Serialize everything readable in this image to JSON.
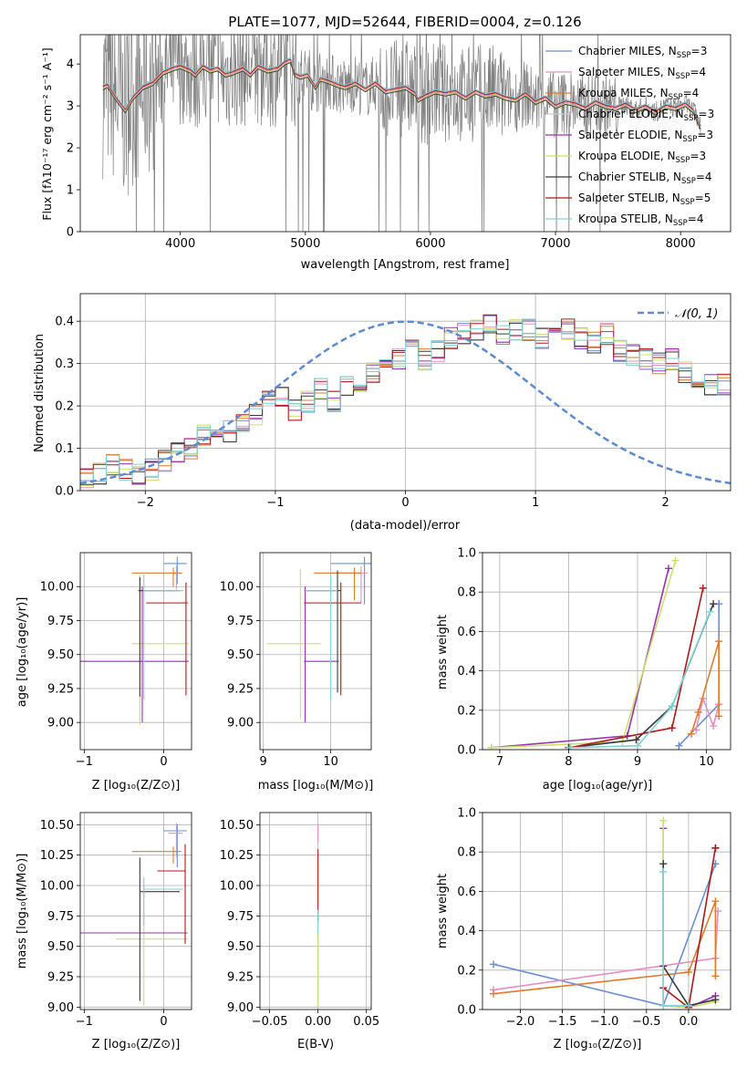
{
  "colors": {
    "chabrier_miles": "#6a8ed6",
    "salpeter_miles": "#e58fc4",
    "kroupa_miles": "#e07b28",
    "chabrier_elodie": "#ffffff",
    "salpeter_elodie": "#9b30b0",
    "kroupa_elodie": "#cce06a",
    "chabrier_stelib": "#3a3a3a",
    "salpeter_stelib": "#b01818",
    "kroupa_stelib": "#7dd3d6",
    "data": "#808080",
    "normal": "#5b8bd4"
  },
  "chart_data": [
    {
      "id": "spectrum",
      "type": "line",
      "title": "PLATE=1077, MJD=52644, FIBERID=0004, z=0.126",
      "xlabel": "wavelength [Angstrom, rest frame]",
      "ylabel": "Flux [fλ10⁻¹⁷ erg cm⁻² s⁻¹ A⁻¹]",
      "xlim": [
        3200,
        8400
      ],
      "ylim": [
        0,
        4.7
      ],
      "xticks": [
        "4000",
        "5000",
        "6000",
        "7000",
        "8000"
      ],
      "yticks": [
        "0",
        "1",
        "2",
        "3",
        "4"
      ],
      "legend_position": "right",
      "legend": [
        {
          "main": "Chabrier MILES, N",
          "sub": "SSP",
          "tail": "=3",
          "color": "chabrier_miles"
        },
        {
          "main": "Salpeter MILES, N",
          "sub": "SSP",
          "tail": "=4",
          "color": "salpeter_miles"
        },
        {
          "main": "Kroupa MILES, N",
          "sub": "SSP",
          "tail": "=4",
          "color": "kroupa_miles"
        },
        {
          "main": "Chabrier ELODIE, N",
          "sub": "SSP",
          "tail": "=3",
          "color": "chabrier_elodie"
        },
        {
          "main": "Salpeter ELODIE, N",
          "sub": "SSP",
          "tail": "=3",
          "color": "salpeter_elodie"
        },
        {
          "main": "Kroupa ELODIE, N",
          "sub": "SSP",
          "tail": "=3",
          "color": "kroupa_elodie"
        },
        {
          "main": "Chabrier STELIB, N",
          "sub": "SSP",
          "tail": "=4",
          "color": "chabrier_stelib"
        },
        {
          "main": "Salpeter STELIB, N",
          "sub": "SSP",
          "tail": "=5",
          "color": "salpeter_stelib"
        },
        {
          "main": "Kroupa STELIB, N",
          "sub": "SSP",
          "tail": "=4",
          "color": "kroupa_stelib"
        }
      ],
      "model_x": [
        3380,
        3420,
        3460,
        3520,
        3560,
        3620,
        3700,
        3780,
        3860,
        3940,
        4000,
        4080,
        4120,
        4180,
        4240,
        4300,
        4360,
        4420,
        4500,
        4560,
        4620,
        4700,
        4780,
        4840,
        4880,
        4920,
        4960,
        5020,
        5080,
        5120,
        5180,
        5260,
        5320,
        5400,
        5480,
        5560,
        5640,
        5720,
        5800,
        5880,
        5900,
        5960,
        6040,
        6120,
        6200,
        6280,
        6360,
        6440,
        6520,
        6600,
        6680,
        6760,
        6840,
        6920,
        7000,
        7080,
        7160,
        7240,
        7320,
        7400,
        7480,
        7560,
        7640,
        7720,
        7800,
        7880,
        7960,
        8040,
        8100,
        8160
      ],
      "model_y": [
        3.45,
        3.5,
        3.3,
        3.05,
        2.9,
        3.2,
        3.45,
        3.55,
        3.8,
        3.9,
        3.95,
        3.85,
        3.75,
        3.95,
        3.85,
        3.9,
        3.75,
        3.8,
        3.9,
        3.75,
        3.95,
        3.85,
        3.9,
        4.05,
        4.1,
        3.75,
        3.7,
        3.75,
        3.45,
        3.65,
        3.6,
        3.5,
        3.45,
        3.55,
        3.4,
        3.55,
        3.35,
        3.4,
        3.45,
        3.3,
        3.15,
        3.25,
        3.35,
        3.3,
        3.35,
        3.2,
        3.35,
        3.25,
        3.3,
        3.2,
        3.15,
        3.3,
        3.1,
        3.2,
        3.0,
        3.1,
        3.05,
        2.95,
        3.1,
        3.0,
        2.95,
        3.05,
        2.9,
        3.0,
        2.85,
        3.0,
        2.95,
        3.05,
        2.9,
        2.5
      ]
    },
    {
      "id": "residuals",
      "type": "line",
      "xlabel": "(data-model)/error",
      "ylabel": "Normed distribution",
      "xlim": [
        -2.5,
        2.5
      ],
      "ylim": [
        0,
        0.465
      ],
      "xticks": [
        "−2",
        "−1",
        "0",
        "1",
        "2"
      ],
      "yticks": [
        "0.0",
        "0.1",
        "0.2",
        "0.3",
        "0.4"
      ],
      "legend_position": "top-right",
      "legend_label": "𝒩(0, 1)",
      "bin_width": 0.1,
      "bin_start": -2.5,
      "hist": [
        0.03,
        0.04,
        0.06,
        0.05,
        0.04,
        0.05,
        0.07,
        0.09,
        0.1,
        0.13,
        0.15,
        0.14,
        0.16,
        0.18,
        0.21,
        0.22,
        0.19,
        0.21,
        0.24,
        0.21,
        0.25,
        0.26,
        0.28,
        0.3,
        0.31,
        0.33,
        0.31,
        0.33,
        0.36,
        0.37,
        0.38,
        0.39,
        0.37,
        0.38,
        0.38,
        0.36,
        0.37,
        0.38,
        0.36,
        0.35,
        0.37,
        0.33,
        0.32,
        0.31,
        0.3,
        0.31,
        0.28,
        0.26,
        0.25,
        0.25,
        0.23,
        0.22,
        0.2,
        0.2,
        0.18,
        0.16,
        0.15,
        0.14,
        0.12,
        0.1,
        0.09,
        0.08,
        0.08,
        0.07,
        0.06,
        0.05,
        0.05,
        0.04,
        0.04,
        0.04,
        0.04,
        0.03
      ]
    },
    {
      "id": "age_vs_Z",
      "type": "scatter",
      "xlabel": "Z [log₁₀(Z/Z⊙)]",
      "ylabel": "age  [log₁₀(age/yr)]",
      "xlim": [
        -1.05,
        0.35
      ],
      "ylim": [
        8.8,
        10.25
      ],
      "xticks": [
        "−1",
        "0"
      ],
      "yticks": [
        "9.00",
        "9.25",
        "9.50",
        "9.75",
        "10.00"
      ],
      "points": [
        {
          "x": 0.17,
          "y": 10.17,
          "xerr": [
            0.17,
            0.12
          ],
          "yerr": [
            0.15,
            0.05
          ],
          "color": "chabrier_miles"
        },
        {
          "x": 0.16,
          "y": 10.1,
          "xerr": [
            0.1,
            0.08
          ],
          "yerr": [
            0.12,
            0.05
          ],
          "color": "salpeter_miles"
        },
        {
          "x": 0.12,
          "y": 10.1,
          "xerr": [
            0.52,
            0.1
          ],
          "yerr": [
            0.1,
            0.04
          ],
          "color": "kroupa_miles"
        },
        {
          "x": -0.3,
          "y": 9.58,
          "xerr": [
            0.1,
            0.62
          ],
          "yerr": [
            0.6,
            0.5
          ],
          "color": "kroupa_elodie"
        },
        {
          "x": -0.27,
          "y": 9.45,
          "xerr": [
            0.78,
            0.58
          ],
          "yerr": [
            0.45,
            0.55
          ],
          "color": "salpeter_elodie"
        },
        {
          "x": -0.3,
          "y": 9.97,
          "xerr": [
            0.02,
            0.5
          ],
          "yerr": [
            0.78,
            0.1
          ],
          "color": "chabrier_stelib"
        },
        {
          "x": 0.28,
          "y": 9.88,
          "xerr": [
            0.5,
            0.02
          ],
          "yerr": [
            0.68,
            0.15
          ],
          "color": "salpeter_stelib"
        },
        {
          "x": -0.25,
          "y": 9.97,
          "xerr": [
            0.0,
            0.5
          ],
          "yerr": [
            0.8,
            0.12
          ],
          "color": "kroupa_stelib"
        }
      ]
    },
    {
      "id": "age_vs_mass",
      "type": "scatter",
      "xlabel": "mass [log₁₀(M/M⊙)]",
      "ylabel": "",
      "xlim": [
        8.95,
        10.6
      ],
      "ylim": [
        8.8,
        10.25
      ],
      "xticks": [
        "9",
        "10"
      ],
      "yticks": [
        "9.00",
        "9.25",
        "9.50",
        "9.75",
        "10.00"
      ],
      "points": [
        {
          "x": 10.5,
          "y": 10.17,
          "xerr": [
            0.5,
            0.1
          ],
          "yerr": [
            0.3,
            0.05
          ],
          "color": "chabrier_miles"
        },
        {
          "x": 10.45,
          "y": 10.1,
          "xerr": [
            0.45,
            0.1
          ],
          "yerr": [
            0.22,
            0.05
          ],
          "color": "salpeter_miles"
        },
        {
          "x": 10.35,
          "y": 10.1,
          "xerr": [
            0.6,
            0.1
          ],
          "yerr": [
            0.2,
            0.04
          ],
          "color": "kroupa_miles"
        },
        {
          "x": 9.55,
          "y": 9.58,
          "xerr": [
            0.5,
            0.3
          ],
          "yerr": [
            0.55,
            0.55
          ],
          "color": "kroupa_elodie"
        },
        {
          "x": 9.62,
          "y": 9.45,
          "xerr": [
            0.02,
            0.5
          ],
          "yerr": [
            0.45,
            0.55
          ],
          "color": "salpeter_elodie"
        },
        {
          "x": 10.1,
          "y": 9.97,
          "xerr": [
            0.5,
            0.05
          ],
          "yerr": [
            0.75,
            0.15
          ],
          "color": "chabrier_stelib"
        },
        {
          "x": 10.15,
          "y": 9.88,
          "xerr": [
            0.55,
            0.3
          ],
          "yerr": [
            0.68,
            0.15
          ],
          "color": "salpeter_stelib"
        },
        {
          "x": 10.0,
          "y": 9.97,
          "xerr": [
            0.4,
            0.1
          ],
          "yerr": [
            0.8,
            0.12
          ],
          "color": "kroupa_stelib"
        }
      ]
    },
    {
      "id": "weight_vs_age",
      "type": "line",
      "xlabel": "age  [log₁₀(age/yr)]",
      "ylabel": "mass weight",
      "xlim": [
        6.75,
        10.35
      ],
      "ylim": [
        0,
        1.0
      ],
      "xticks": [
        "7",
        "8",
        "9",
        "10"
      ],
      "yticks": [
        "0.0",
        "0.2",
        "0.4",
        "0.6",
        "0.8",
        "1.0"
      ],
      "series": [
        {
          "color": "chabrier_miles",
          "x": [
            9.6,
            10.18,
            10.18,
            10.18
          ],
          "y": [
            0.02,
            0.23,
            0.74,
            0.74
          ]
        },
        {
          "color": "salpeter_miles",
          "x": [
            9.85,
            9.95,
            10.1,
            10.18
          ],
          "y": [
            0.1,
            0.26,
            0.12,
            0.23
          ]
        },
        {
          "color": "kroupa_miles",
          "x": [
            9.78,
            9.88,
            10.18,
            10.18
          ],
          "y": [
            0.08,
            0.19,
            0.55,
            0.17
          ]
        },
        {
          "color": "salpeter_elodie",
          "x": [
            6.88,
            8.85,
            9.45
          ],
          "y": [
            0.01,
            0.07,
            0.92
          ]
        },
        {
          "color": "kroupa_elodie",
          "x": [
            6.88,
            8.78,
            9.55
          ],
          "y": [
            0.01,
            0.04,
            0.96
          ]
        },
        {
          "color": "chabrier_stelib",
          "x": [
            8.0,
            8.98,
            9.5,
            10.1
          ],
          "y": [
            0.01,
            0.05,
            0.22,
            0.74
          ]
        },
        {
          "color": "salpeter_stelib",
          "x": [
            8.02,
            9.5,
            9.95
          ],
          "y": [
            0.01,
            0.11,
            0.82
          ]
        },
        {
          "color": "kroupa_stelib",
          "x": [
            8.02,
            9.0,
            9.5,
            10.05
          ],
          "y": [
            0.01,
            0.02,
            0.22,
            0.7
          ]
        }
      ]
    },
    {
      "id": "mass_vs_Z",
      "type": "scatter",
      "xlabel": "Z [log₁₀(Z/Z⊙)]",
      "ylabel": "mass [log₁₀(M/M⊙)]",
      "xlim": [
        -1.05,
        0.35
      ],
      "ylim": [
        8.98,
        10.6
      ],
      "xticks": [
        "−1",
        "0"
      ],
      "yticks": [
        "9.00",
        "9.25",
        "9.50",
        "9.75",
        "10.00",
        "10.25",
        "10.50"
      ],
      "points": [
        {
          "x": 0.17,
          "y": 10.45,
          "xerr": [
            0.17,
            0.12
          ],
          "yerr": [
            0.3,
            0.05
          ],
          "color": "chabrier_miles"
        },
        {
          "x": 0.16,
          "y": 10.43,
          "xerr": [
            0.1,
            0.08
          ],
          "yerr": [
            0.2,
            0.08
          ],
          "color": "salpeter_miles"
        },
        {
          "x": 0.12,
          "y": 10.28,
          "xerr": [
            0.52,
            0.1
          ],
          "yerr": [
            0.1,
            0.04
          ],
          "color": "kroupa_miles"
        },
        {
          "x": -0.25,
          "y": 9.56,
          "xerr": [
            0.35,
            0.55
          ],
          "yerr": [
            0.55,
            0.45
          ],
          "color": "kroupa_elodie"
        },
        {
          "x": -0.2,
          "y": 9.61,
          "xerr": [
            0.85,
            0.5
          ],
          "yerr": [
            0.0,
            0.0
          ],
          "color": "salpeter_elodie"
        },
        {
          "x": -0.3,
          "y": 9.95,
          "xerr": [
            0.0,
            0.5
          ],
          "yerr": [
            0.9,
            0.28
          ],
          "color": "chabrier_stelib"
        },
        {
          "x": 0.27,
          "y": 10.12,
          "xerr": [
            0.35,
            0.0
          ],
          "yerr": [
            0.6,
            0.22
          ],
          "color": "salpeter_stelib"
        },
        {
          "x": -0.25,
          "y": 9.97,
          "xerr": [
            0.0,
            0.5
          ],
          "yerr": [
            0.3,
            0.1
          ],
          "color": "kroupa_stelib"
        }
      ]
    },
    {
      "id": "mass_vs_ebv",
      "type": "scatter",
      "xlabel": "E(B-V)",
      "ylabel": "",
      "xlim": [
        -0.06,
        0.055
      ],
      "ylim": [
        8.98,
        10.6
      ],
      "xticks": [
        "−0.05",
        "0.00",
        "0.05"
      ],
      "yticks": [
        "9.00",
        "9.25",
        "9.50",
        "9.75",
        "10.00",
        "10.25",
        "10.50"
      ],
      "points": [
        {
          "x": 0.0,
          "y": 10.45,
          "xerr": [
            0,
            0
          ],
          "yerr": [
            0.1,
            0.05
          ],
          "color": "salpeter_miles"
        },
        {
          "x": 0.0,
          "y": 10.2,
          "xerr": [
            0,
            0
          ],
          "yerr": [
            0.5,
            0.1
          ],
          "color": "salpeter_stelib"
        },
        {
          "x": 0.0,
          "y": 9.7,
          "xerr": [
            0,
            0
          ],
          "yerr": [
            0.7,
            0.1
          ],
          "color": "kroupa_stelib"
        },
        {
          "x": 0.0,
          "y": 9.4,
          "xerr": [
            0,
            0
          ],
          "yerr": [
            0.4,
            0.2
          ],
          "color": "kroupa_elodie"
        }
      ]
    },
    {
      "id": "weight_vs_Z",
      "type": "line",
      "xlabel": "Z [log₁₀(Z/Z⊙)]",
      "ylabel": "mass weight",
      "xlim": [
        -2.45,
        0.5
      ],
      "ylim": [
        0,
        1.0
      ],
      "xticks": [
        "−2.0",
        "−1.5",
        "−1.0",
        "−0.5",
        "0.0"
      ],
      "yticks": [
        "0.0",
        "0.2",
        "0.4",
        "0.6",
        "0.8",
        "1.0"
      ],
      "series": [
        {
          "color": "chabrier_miles",
          "x": [
            -2.32,
            -0.3,
            0.32,
            0.32
          ],
          "y": [
            0.23,
            0.02,
            0.74,
            0.74
          ]
        },
        {
          "color": "salpeter_miles",
          "x": [
            -2.32,
            0.32,
            0.35,
            0.32
          ],
          "y": [
            0.1,
            0.26,
            0.5,
            0.26
          ]
        },
        {
          "color": "kroupa_miles",
          "x": [
            -2.32,
            0.0,
            0.32,
            0.32
          ],
          "y": [
            0.08,
            0.19,
            0.55,
            0.17
          ]
        },
        {
          "color": "salpeter_elodie",
          "x": [
            -0.3,
            -0.3,
            0.0,
            0.32
          ],
          "y": [
            0.92,
            0.02,
            0.01,
            0.07
          ]
        },
        {
          "color": "kroupa_elodie",
          "x": [
            -0.3,
            -0.3,
            0.0,
            0.32
          ],
          "y": [
            0.96,
            0.02,
            0.01,
            0.04
          ]
        },
        {
          "color": "chabrier_stelib",
          "x": [
            -0.3,
            -0.3,
            0.0,
            0.32
          ],
          "y": [
            0.74,
            0.22,
            0.02,
            0.05
          ]
        },
        {
          "color": "salpeter_stelib",
          "x": [
            -0.3,
            0.0,
            0.32,
            0.32
          ],
          "y": [
            0.11,
            0.01,
            0.82,
            0.82
          ]
        },
        {
          "color": "kroupa_stelib",
          "x": [
            -0.3,
            -0.3,
            0.0
          ],
          "y": [
            0.7,
            0.02,
            0.02
          ]
        }
      ]
    }
  ]
}
